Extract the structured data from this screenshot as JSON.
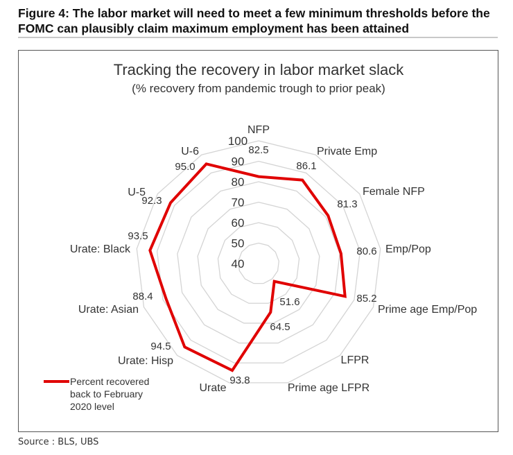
{
  "figure_title": "Figure 4: The labor market will need to meet a few minimum thresholds before the FOMC can plausibly claim maximum employment has been attained",
  "source": "Source : BLS, UBS",
  "chart_data": {
    "type": "radar",
    "title": "Tracking the recovery in labor market slack",
    "subtitle": "(% recovery from pandemic trough to prior peak)",
    "categories": [
      "NFP",
      "Private Emp",
      "Female NFP",
      "Emp/Pop",
      "Prime age Emp/Pop",
      "LFPR",
      "Prime age LFPR",
      "Urate",
      "Urate: Hisp",
      "Urate: Asian",
      "Urate: Black",
      "U-5",
      "U-6"
    ],
    "series": [
      {
        "name": "Percent recovered back to February 2020 level",
        "color": "#e00000",
        "values": [
          82.5,
          86.1,
          81.3,
          80.6,
          85.2,
          51.6,
          64.5,
          93.8,
          94.5,
          88.4,
          93.5,
          92.3,
          95.0
        ]
      }
    ],
    "value_labels": [
      "82.5",
      "86.1",
      "81.3",
      "80.6",
      "85.2",
      "51.6",
      "64.5",
      "93.8",
      "94.5",
      "88.4",
      "93.5",
      "92.3",
      "95.0"
    ],
    "radial_range": [
      40,
      100
    ],
    "radial_ticks": [
      "40",
      "50",
      "60",
      "70",
      "80",
      "90",
      "100"
    ],
    "grid_color": "#d4d4d4",
    "legend": {
      "lines": [
        "Percent recovered",
        "back to February",
        "2020 level"
      ],
      "placement": "bottom-left"
    }
  }
}
